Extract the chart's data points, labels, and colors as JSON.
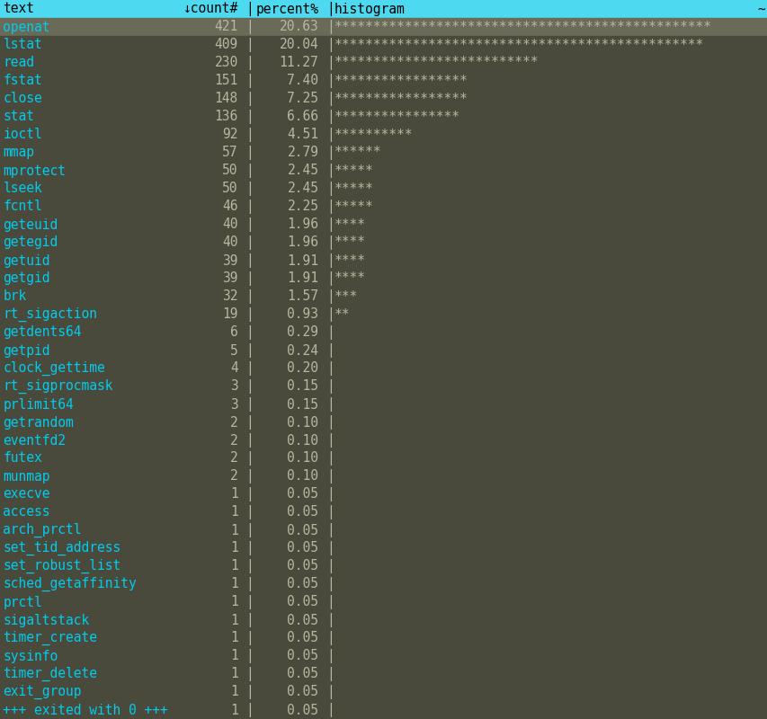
{
  "bg_color": "#4a4a3c",
  "header_bg": "#4dd9f0",
  "header_text_color": "#000000",
  "row0_bg": "#6a6a58",
  "row_bg_dark": "#4a4a3c",
  "text_color": "#b8b8a0",
  "cyan_color": "#00ccee",
  "star_color": "#b8b8a0",
  "col1_header": "text",
  "col2_header": "↓count#",
  "col3_header": "percent%",
  "col4_header": "histogram",
  "tilde": "~",
  "rows": [
    {
      "text": "openat",
      "count": 421,
      "percent": "20.63",
      "stars": 48
    },
    {
      "text": "lstat",
      "count": 409,
      "percent": "20.04",
      "stars": 47
    },
    {
      "text": "read",
      "count": 230,
      "percent": "11.27",
      "stars": 26
    },
    {
      "text": "fstat",
      "count": 151,
      "percent": "7.40",
      "stars": 17
    },
    {
      "text": "close",
      "count": 148,
      "percent": "7.25",
      "stars": 17
    },
    {
      "text": "stat",
      "count": 136,
      "percent": "6.66",
      "stars": 16
    },
    {
      "text": "ioctl",
      "count": 92,
      "percent": "4.51",
      "stars": 10
    },
    {
      "text": "mmap",
      "count": 57,
      "percent": "2.79",
      "stars": 6
    },
    {
      "text": "mprotect",
      "count": 50,
      "percent": "2.45",
      "stars": 5
    },
    {
      "text": "lseek",
      "count": 50,
      "percent": "2.45",
      "stars": 5
    },
    {
      "text": "fcntl",
      "count": 46,
      "percent": "2.25",
      "stars": 5
    },
    {
      "text": "geteuid",
      "count": 40,
      "percent": "1.96",
      "stars": 4
    },
    {
      "text": "getegid",
      "count": 40,
      "percent": "1.96",
      "stars": 4
    },
    {
      "text": "getuid",
      "count": 39,
      "percent": "1.91",
      "stars": 4
    },
    {
      "text": "getgid",
      "count": 39,
      "percent": "1.91",
      "stars": 4
    },
    {
      "text": "brk",
      "count": 32,
      "percent": "1.57",
      "stars": 3
    },
    {
      "text": "rt_sigaction",
      "count": 19,
      "percent": "0.93",
      "stars": 2
    },
    {
      "text": "getdents64",
      "count": 6,
      "percent": "0.29",
      "stars": 0
    },
    {
      "text": "getpid",
      "count": 5,
      "percent": "0.24",
      "stars": 0
    },
    {
      "text": "clock_gettime",
      "count": 4,
      "percent": "0.20",
      "stars": 0
    },
    {
      "text": "rt_sigprocmask",
      "count": 3,
      "percent": "0.15",
      "stars": 0
    },
    {
      "text": "prlimit64",
      "count": 3,
      "percent": "0.15",
      "stars": 0
    },
    {
      "text": "getrandom",
      "count": 2,
      "percent": "0.10",
      "stars": 0
    },
    {
      "text": "eventfd2",
      "count": 2,
      "percent": "0.10",
      "stars": 0
    },
    {
      "text": "futex",
      "count": 2,
      "percent": "0.10",
      "stars": 0
    },
    {
      "text": "munmap",
      "count": 2,
      "percent": "0.10",
      "stars": 0
    },
    {
      "text": "execve",
      "count": 1,
      "percent": "0.05",
      "stars": 0
    },
    {
      "text": "access",
      "count": 1,
      "percent": "0.05",
      "stars": 0
    },
    {
      "text": "arch_prctl",
      "count": 1,
      "percent": "0.05",
      "stars": 0
    },
    {
      "text": "set_tid_address",
      "count": 1,
      "percent": "0.05",
      "stars": 0
    },
    {
      "text": "set_robust_list",
      "count": 1,
      "percent": "0.05",
      "stars": 0
    },
    {
      "text": "sched_getaffinity",
      "count": 1,
      "percent": "0.05",
      "stars": 0
    },
    {
      "text": "prctl",
      "count": 1,
      "percent": "0.05",
      "stars": 0
    },
    {
      "text": "sigaltstack",
      "count": 1,
      "percent": "0.05",
      "stars": 0
    },
    {
      "text": "timer_create",
      "count": 1,
      "percent": "0.05",
      "stars": 0
    },
    {
      "text": "sysinfo",
      "count": 1,
      "percent": "0.05",
      "stars": 0
    },
    {
      "text": "timer_delete",
      "count": 1,
      "percent": "0.05",
      "stars": 0
    },
    {
      "text": "exit_group",
      "count": 1,
      "percent": "0.05",
      "stars": 0
    },
    {
      "+++ exited with 0 +++": true,
      "text": "+++ exited with 0 +++",
      "count": 1,
      "percent": "0.05",
      "stars": 0
    }
  ],
  "figsize": [
    8.54,
    8.0
  ],
  "dpi": 100,
  "font_size": 10.5
}
